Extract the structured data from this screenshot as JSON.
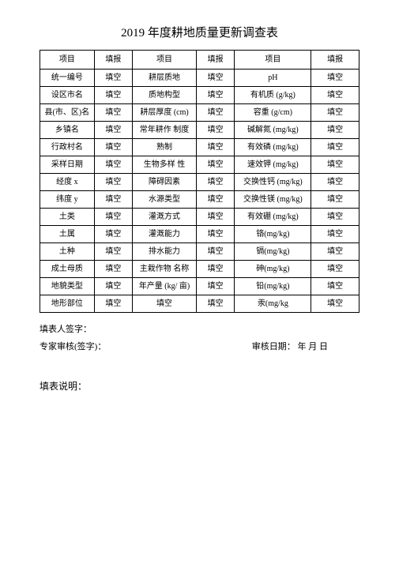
{
  "title": "2019 年度耕地质量更新调查表",
  "headers": [
    "项目",
    "填报",
    "项目",
    "填报",
    "项目",
    "填报"
  ],
  "rows": [
    [
      "统一编号",
      "填空",
      "耕层质地",
      "填空",
      "pH",
      "填空"
    ],
    [
      "设区市名",
      "填空",
      "质地构型",
      "填空",
      "有机质 (g/kg)",
      "填空"
    ],
    [
      "县(市、区)名",
      "填空",
      "耕层厚度 (cm)",
      "填空",
      "容重 (g/cm)",
      "填空"
    ],
    [
      "乡镇名",
      "填空",
      "常年耕作 制度",
      "填空",
      "碱解氮 (mg/kg)",
      "填空"
    ],
    [
      "行政村名",
      "填空",
      "熟制",
      "填空",
      "有效磷 (mg/kg)",
      "填空"
    ],
    [
      "采样日期",
      "填空",
      "生物多样 性",
      "填空",
      "速效钾 (mg/kg)",
      "填空"
    ],
    [
      "经度 x",
      "填空",
      "障碍因素",
      "填空",
      "交换性钙 (mg/kg)",
      "填空"
    ],
    [
      "纬度 y",
      "填空",
      "水源类型",
      "填空",
      "交换性镁 (mg/kg)",
      "填空"
    ],
    [
      "土类",
      "填空",
      "灌溉方式",
      "填空",
      "有效硼 (mg/kg)",
      "填空"
    ],
    [
      "土属",
      "填空",
      "灌溉能力",
      "填空",
      "铬(mg/kg)",
      "填空"
    ],
    [
      "土种",
      "填空",
      "排水能力",
      "填空",
      "镉(mg/kg)",
      "填空"
    ],
    [
      "成土母质",
      "填空",
      "主栽作物 名称",
      "填空",
      "砷(mg/kg)",
      "填空"
    ],
    [
      "地貌类型",
      "填空",
      "年产量 (kg/ 亩)",
      "填空",
      "铅(mg/kg)",
      "填空"
    ],
    [
      "地形部位",
      "填空",
      "填空",
      "填空",
      "汞(mg/kg",
      "填空"
    ]
  ],
  "signLabel": "填表人签字：",
  "expertLabel": "专家审核(签字)：",
  "auditLabel": "审核日期：  年 月 日",
  "explainLabel": "填表说明："
}
